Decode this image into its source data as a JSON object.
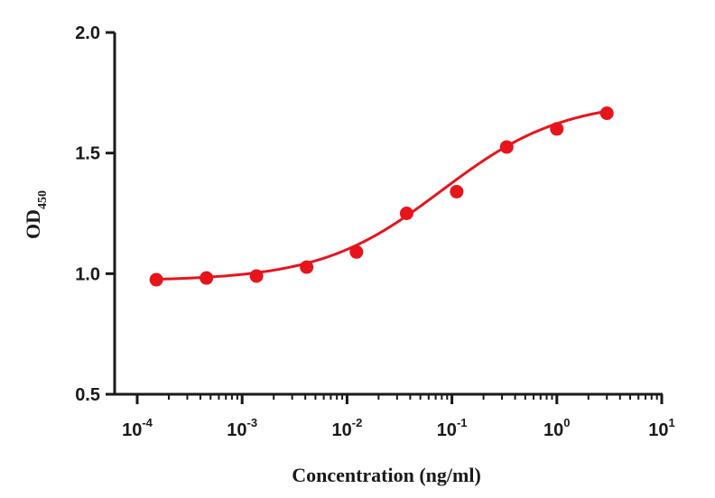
{
  "chart_data": {
    "type": "scatter",
    "xlabel": "Concentration (ng/ml)",
    "ylabel": {
      "main": "OD",
      "subscript": "450"
    },
    "x_scale": "log",
    "xlim": [
      0.0001,
      10
    ],
    "ylim": [
      0.5,
      2.0
    ],
    "x_ticks": [
      {
        "value": 0.0001,
        "base": "10",
        "exponent": "-4"
      },
      {
        "value": 0.001,
        "base": "10",
        "exponent": "-3"
      },
      {
        "value": 0.01,
        "base": "10",
        "exponent": "-2"
      },
      {
        "value": 0.1,
        "base": "10",
        "exponent": "-1"
      },
      {
        "value": 1,
        "base": "10",
        "exponent": "0"
      },
      {
        "value": 10,
        "base": "10",
        "exponent": "1"
      }
    ],
    "y_ticks": [
      "0.5",
      "1.0",
      "1.5",
      "2.0"
    ],
    "grid": false,
    "series": [
      {
        "color": "#e8141c",
        "points": [
          {
            "x": 0.000152,
            "y": 0.975
          },
          {
            "x": 0.000457,
            "y": 0.982
          },
          {
            "x": 0.00137,
            "y": 0.99
          },
          {
            "x": 0.00412,
            "y": 1.027
          },
          {
            "x": 0.0123,
            "y": 1.09
          },
          {
            "x": 0.037,
            "y": 1.25
          },
          {
            "x": 0.111,
            "y": 1.34
          },
          {
            "x": 0.333,
            "y": 1.525
          },
          {
            "x": 1.0,
            "y": 1.6
          },
          {
            "x": 3.0,
            "y": 1.665
          }
        ],
        "fit_curve": {
          "type": "4PL",
          "bottom": 0.97,
          "top": 1.72,
          "ec50": 0.08,
          "hill": 0.75
        }
      }
    ]
  }
}
